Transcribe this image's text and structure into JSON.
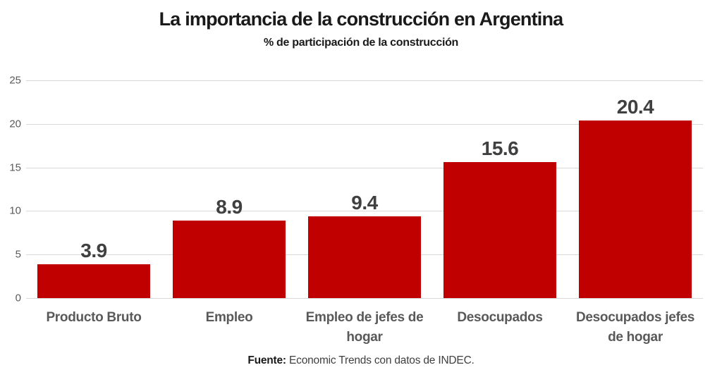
{
  "chart_data": {
    "type": "bar",
    "title": "La importancia de la construcción en Argentina",
    "subtitle": "% de participación de la construcción",
    "categories": [
      "Producto Bruto",
      "Empleo",
      "Empleo de jefes de hogar",
      "Desocupados",
      "Desocupados jefes de hogar"
    ],
    "values": [
      3.9,
      8.9,
      9.4,
      15.6,
      20.4
    ],
    "data_labels": [
      "3.9",
      "8.9",
      "9.4",
      "15.6",
      "20.4"
    ],
    "ylim": [
      0,
      25
    ],
    "yticks": [
      0,
      5,
      10,
      15,
      20,
      25
    ],
    "grid": true,
    "legend": "none",
    "xlabel": "",
    "ylabel": "",
    "colors": {
      "bar": "#c00000",
      "gridline": "#d9d9d9",
      "tick_label": "#595959",
      "data_label": "#404040",
      "category_label": "#595959",
      "title": "#1a1a1a"
    },
    "source_label": "Fuente:",
    "source_text": " Economic Trends con datos de INDEC."
  }
}
